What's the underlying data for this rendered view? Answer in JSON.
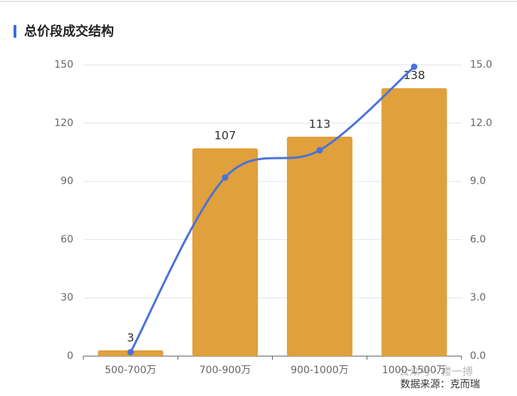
{
  "chart_data": {
    "type": "bar-line",
    "title": "总价段成交结构",
    "categories": [
      "500-700万",
      "700-900万",
      "900-1000万",
      "1000-1500万"
    ],
    "series": [
      {
        "type": "bar",
        "color": "#e0a03c",
        "values": [
          3,
          107,
          113,
          138
        ]
      },
      {
        "type": "line",
        "axis": "y2",
        "color": "#4a72d8",
        "values": [
          0.2,
          9.2,
          10.6,
          14.9
        ]
      }
    ],
    "ylim": [
      0,
      150
    ],
    "yticks": [
      0,
      30,
      60,
      90,
      120,
      150
    ],
    "y2lim": [
      0,
      15
    ],
    "y2ticks": [
      {
        "value": 0,
        "label": "0.0"
      },
      {
        "value": 3,
        "label": "3.0"
      },
      {
        "value": 6,
        "label": "6.0"
      },
      {
        "value": 9,
        "label": "9.0"
      },
      {
        "value": 12,
        "label": "12.0"
      },
      {
        "value": 15,
        "label": "15.0"
      }
    ],
    "grid": true,
    "watermark": "公众号 · 楼一搏",
    "source": "数据来源：克而瑞"
  }
}
